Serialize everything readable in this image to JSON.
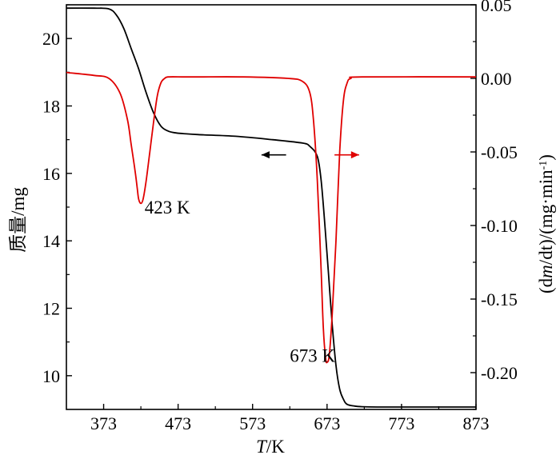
{
  "chart_data": {
    "type": "line",
    "xlabel_italic": "T",
    "xlabel_rest": "/K",
    "ylabel_left": "质量/mg",
    "ylabel_right_parts": [
      "(d",
      "m",
      "/dt)/(mg·min",
      "-1",
      ")"
    ],
    "xlim": [
      323,
      873
    ],
    "ylim_left": [
      9.0,
      21.0
    ],
    "ylim_right": [
      -0.225,
      0.05
    ],
    "x_ticks": [
      373,
      473,
      573,
      673,
      773,
      873
    ],
    "y_left_ticks": [
      10,
      12,
      14,
      16,
      18,
      20
    ],
    "y_right_ticks": [
      "0.05",
      "0.00",
      "-0.05",
      "-0.10",
      "-0.15",
      "-0.20"
    ],
    "y_right_tick_values": [
      0.05,
      0.0,
      -0.05,
      -0.1,
      -0.15,
      -0.2
    ],
    "grid": false,
    "series": [
      {
        "axis": "left",
        "color": "#000000",
        "x": [
          323,
          360,
          380,
          390,
          400,
          410,
          420,
          430,
          440,
          450,
          460,
          470,
          480,
          500,
          550,
          600,
          640,
          650,
          660,
          665,
          670,
          675,
          680,
          685,
          690,
          695,
          700,
          710,
          720,
          740,
          780,
          873
        ],
        "y": [
          20.9,
          20.9,
          20.88,
          20.7,
          20.3,
          19.7,
          19.1,
          18.4,
          17.8,
          17.4,
          17.25,
          17.2,
          17.18,
          17.15,
          17.1,
          17.0,
          16.9,
          16.8,
          16.5,
          15.8,
          14.5,
          13.0,
          11.5,
          10.3,
          9.6,
          9.3,
          9.15,
          9.1,
          9.08,
          9.07,
          9.07,
          9.07
        ]
      },
      {
        "axis": "right",
        "color": "#e00000",
        "x": [
          323,
          360,
          380,
          395,
          405,
          410,
          415,
          418,
          420,
          423,
          426,
          430,
          435,
          440,
          445,
          450,
          455,
          460,
          480,
          500,
          560,
          620,
          640,
          650,
          655,
          660,
          665,
          668,
          671,
          673,
          676,
          680,
          685,
          690,
          695,
          700,
          705,
          720,
          873
        ],
        "y": [
          0.004,
          0.002,
          0.0,
          -0.01,
          -0.028,
          -0.045,
          -0.062,
          -0.074,
          -0.082,
          -0.085,
          -0.082,
          -0.07,
          -0.05,
          -0.03,
          -0.012,
          -0.003,
          0.0,
          0.001,
          0.001,
          0.001,
          0.001,
          0.0,
          -0.002,
          -0.01,
          -0.03,
          -0.07,
          -0.13,
          -0.17,
          -0.19,
          -0.193,
          -0.188,
          -0.16,
          -0.11,
          -0.05,
          -0.015,
          -0.003,
          0.0,
          0.001,
          0.001
        ]
      }
    ],
    "annotations": [
      {
        "text": "423 K",
        "x": 428,
        "y": 15.0
      },
      {
        "text": "673 K",
        "x": 623,
        "y": 10.6
      }
    ],
    "arrows": [
      {
        "direction": "left",
        "color": "#000000",
        "from_x": 618,
        "to_x": 585,
        "y": 16.55
      },
      {
        "direction": "right",
        "color": "#e00000",
        "from_x": 683,
        "to_x": 716,
        "y": 16.55
      }
    ]
  }
}
